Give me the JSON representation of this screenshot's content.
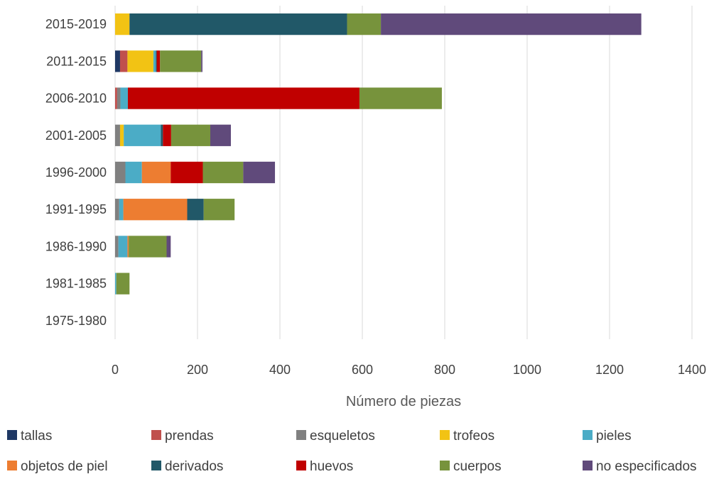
{
  "chart_data": {
    "type": "bar",
    "orientation": "horizontal",
    "stacked": true,
    "title": "",
    "xlabel": "Número de piezas",
    "ylabel": "",
    "xlim": [
      0,
      1400
    ],
    "x_ticks": [
      0,
      200,
      400,
      600,
      800,
      1000,
      1200,
      1400
    ],
    "grid": "vertical",
    "legend_position": "bottom",
    "categories": [
      "2015-2019",
      "2011-2015",
      "2006-2010",
      "2001-2005",
      "1996-2000",
      "1991-1995",
      "1986-1990",
      "1981-1985",
      "1975-1980"
    ],
    "series": [
      {
        "name": "tallas",
        "color": "#1F3864",
        "values": [
          0,
          12,
          0,
          0,
          0,
          0,
          0,
          0,
          0
        ]
      },
      {
        "name": "prendas",
        "color": "#C0504D",
        "values": [
          0,
          18,
          5,
          0,
          0,
          0,
          0,
          0,
          0
        ]
      },
      {
        "name": "esqueletos",
        "color": "#808080",
        "values": [
          0,
          0,
          8,
          12,
          25,
          10,
          8,
          0,
          0
        ]
      },
      {
        "name": "trofeos",
        "color": "#F2C314",
        "values": [
          35,
          63,
          0,
          9,
          0,
          0,
          0,
          0,
          0
        ]
      },
      {
        "name": "pieles",
        "color": "#4BACC6",
        "values": [
          0,
          6,
          18,
          90,
          40,
          10,
          22,
          3,
          0
        ]
      },
      {
        "name": "objetos de piel",
        "color": "#ED7D31",
        "values": [
          0,
          0,
          0,
          0,
          70,
          155,
          3,
          0,
          0
        ]
      },
      {
        "name": "derivados",
        "color": "#215868",
        "values": [
          528,
          2,
          0,
          5,
          0,
          40,
          0,
          0,
          0
        ]
      },
      {
        "name": "huevos",
        "color": "#C00000",
        "values": [
          0,
          8,
          562,
          20,
          78,
          0,
          0,
          0,
          0
        ]
      },
      {
        "name": "cuerpos",
        "color": "#77933C",
        "values": [
          82,
          100,
          200,
          95,
          98,
          75,
          92,
          32,
          0
        ]
      },
      {
        "name": "no especificados",
        "color": "#604A7B",
        "values": [
          632,
          3,
          0,
          50,
          77,
          0,
          10,
          0,
          0
        ]
      }
    ]
  }
}
